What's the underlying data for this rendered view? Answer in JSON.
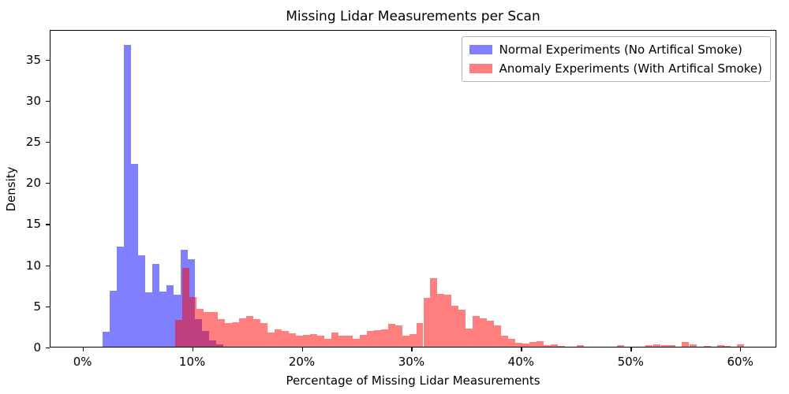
{
  "figure": {
    "title": "Missing Lidar Measurements per Scan",
    "xlabel": "Percentage of Missing Lidar Measurements",
    "ylabel": "Density"
  },
  "legend": {
    "items": [
      {
        "label": "Normal Experiments (No Artifical Smoke)",
        "color": "rgba(0,0,255,0.5)"
      },
      {
        "label": "Anomaly Experiments (With Artifical Smoke)",
        "color": "rgba(255,0,0,0.5)"
      }
    ]
  },
  "chart_data": {
    "type": "bar",
    "subtype": "overlapping-density-histograms",
    "title": "Missing Lidar Measurements per Scan",
    "xlabel": "Percentage of Missing Lidar Measurements",
    "ylabel": "Density",
    "xlim": [
      -3.0,
      63.3
    ],
    "ylim": [
      0,
      38.6
    ],
    "grid": false,
    "legend_position": "upper right",
    "xticks": [
      {
        "value": 0,
        "label": "0%"
      },
      {
        "value": 10,
        "label": "10%"
      },
      {
        "value": 20,
        "label": "20%"
      },
      {
        "value": 30,
        "label": "30%"
      },
      {
        "value": 40,
        "label": "40%"
      },
      {
        "value": 50,
        "label": "50%"
      },
      {
        "value": 60,
        "label": "60%"
      }
    ],
    "yticks": [
      0,
      5,
      10,
      15,
      20,
      25,
      30,
      35
    ],
    "colors": {
      "normal_fill": "rgba(0,0,255,0.5)",
      "anomaly_fill": "rgba(255,0,0,0.5)",
      "normal_on_white": "#8080FF",
      "anomaly_on_white": "#FF8080",
      "overlap": "#BF4080"
    },
    "series": [
      {
        "name": "Normal Experiments (No Artifical Smoke)",
        "color": "rgba(0,0,255,0.5)",
        "bin_start": 1.77,
        "bin_width": 0.6464,
        "densities": [
          1.85,
          6.8,
          12.2,
          36.7,
          22.2,
          11.1,
          6.6,
          10.1,
          6.7,
          7.5,
          6.3,
          11.8,
          10.6,
          3.4,
          1.9,
          0.8,
          0.3
        ]
      },
      {
        "name": "Anomaly Experiments (With Artifical Smoke)",
        "color": "rgba(255,0,0,0.5)",
        "bin_start": 8.39,
        "bin_width": 0.6464,
        "densities": [
          3.3,
          9.6,
          6.0,
          4.6,
          4.2,
          4.25,
          3.4,
          2.9,
          3.0,
          3.45,
          3.7,
          3.4,
          2.9,
          1.75,
          2.1,
          1.9,
          1.6,
          1.3,
          1.4,
          1.5,
          1.3,
          1.0,
          1.7,
          1.3,
          1.3,
          1.0,
          1.4,
          1.9,
          2.0,
          2.1,
          2.8,
          2.6,
          1.3,
          1.5,
          2.9,
          5.9,
          8.3,
          6.4,
          6.3,
          5.0,
          4.5,
          2.2,
          3.7,
          3.45,
          3.2,
          2.6,
          1.3,
          1.0,
          0.5,
          0.4,
          0.55,
          0.7,
          0.16,
          0.3,
          0.1
        ],
        "extra_bars": [
          {
            "x": 45.0,
            "h": 0.15
          },
          {
            "x": 48.7,
            "h": 0.15
          },
          {
            "x": 51.3,
            "h": 0.15
          },
          {
            "x": 52.0,
            "h": 0.25
          },
          {
            "x": 52.7,
            "h": 0.2
          },
          {
            "x": 53.4,
            "h": 0.15
          },
          {
            "x": 54.6,
            "h": 0.55
          },
          {
            "x": 55.3,
            "h": 0.3
          },
          {
            "x": 56.6,
            "h": 0.12
          },
          {
            "x": 57.8,
            "h": 0.2
          },
          {
            "x": 58.4,
            "h": 0.12
          },
          {
            "x": 59.6,
            "h": 0.25
          }
        ]
      }
    ]
  }
}
